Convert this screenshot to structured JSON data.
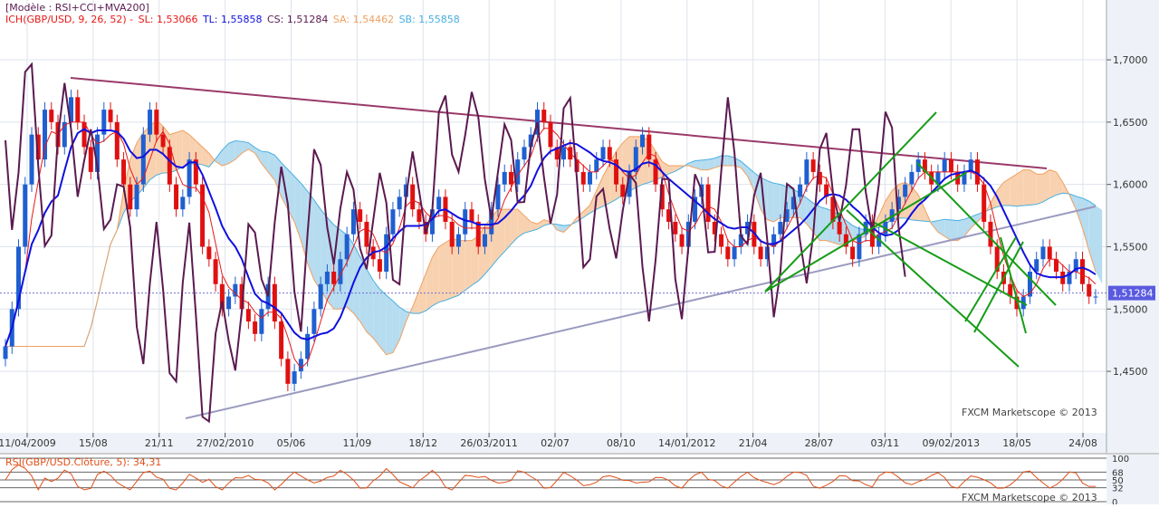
{
  "header": {
    "model_line": "[Modèle : RSI+CCI+MVA200]",
    "ich_label": "ICH(GBP/USD, 9, 26, 52) -",
    "sl": "SL: 1,53066",
    "tl": "TL: 1,55858",
    "cs": "CS: 1,51284",
    "sa": "SA: 1,54462",
    "sb": "SB: 1,55858"
  },
  "colors": {
    "background": "#ffffff",
    "grid": "#dde3ec",
    "axis_panel": "#eef2f8",
    "bull_candle": "#1f5fd0",
    "bear_candle": "#e01010",
    "tenkan": "#e81818",
    "kijun": "#1010e0",
    "chikou": "#5a1a50",
    "senkou_up_fill": "#b6dcf0",
    "senkou_down_fill": "#f8d2b0",
    "senkou_b": "#48b0e0",
    "senkou_a": "#f0a060",
    "trend_top": "#9a3a6a",
    "trend_bottom": "#9a9ac0",
    "channel": "#169c16",
    "rsi": "#e0501a",
    "price_marker_bg": "#5a5ae0"
  },
  "watermark": "FXCM Marketscope © 2013",
  "rsi_panel": {
    "label": "RSI(GBP/USD.Clôture, 5): 34,31",
    "watermark": "FXCM Marketscope © 2013",
    "ticks": [
      "100",
      "68",
      "50",
      "32",
      "0"
    ]
  },
  "chart_data": {
    "type": "candlestick",
    "symbol": "GBP/USD",
    "timeframe": "weekly",
    "ylim": [
      1.405,
      1.748
    ],
    "y_ticks": [
      1.45,
      1.5,
      1.55,
      1.6,
      1.65,
      1.7
    ],
    "y_tick_labels": [
      "1,4500",
      "1,5000",
      "1,5500",
      "1,6000",
      "1,6500",
      "1,7000"
    ],
    "x_tick_labels": [
      "11/04/2009",
      "15/08",
      "21/11",
      "27/02/2010",
      "05/06",
      "11/09",
      "18/12",
      "26/03/2011",
      "02/07",
      "08/10",
      "14/01/2012",
      "21/04",
      "28/07",
      "03/11",
      "09/02/2013",
      "18/05",
      "24/08"
    ],
    "last_price": 1.51284,
    "last_price_label": "1,51284",
    "grid": true,
    "closes": [
      1.47,
      1.5,
      1.55,
      1.6,
      1.64,
      1.62,
      1.66,
      1.65,
      1.63,
      1.65,
      1.67,
      1.65,
      1.63,
      1.61,
      1.64,
      1.66,
      1.65,
      1.62,
      1.6,
      1.58,
      1.6,
      1.64,
      1.66,
      1.64,
      1.63,
      1.6,
      1.58,
      1.59,
      1.62,
      1.6,
      1.55,
      1.54,
      1.52,
      1.5,
      1.51,
      1.52,
      1.5,
      1.49,
      1.48,
      1.5,
      1.52,
      1.49,
      1.46,
      1.44,
      1.45,
      1.46,
      1.48,
      1.5,
      1.52,
      1.53,
      1.52,
      1.54,
      1.56,
      1.58,
      1.57,
      1.55,
      1.54,
      1.53,
      1.56,
      1.58,
      1.59,
      1.6,
      1.58,
      1.57,
      1.56,
      1.58,
      1.59,
      1.57,
      1.55,
      1.56,
      1.58,
      1.57,
      1.55,
      1.56,
      1.58,
      1.6,
      1.61,
      1.6,
      1.62,
      1.63,
      1.64,
      1.66,
      1.65,
      1.63,
      1.62,
      1.63,
      1.62,
      1.61,
      1.6,
      1.61,
      1.62,
      1.63,
      1.62,
      1.6,
      1.59,
      1.61,
      1.63,
      1.64,
      1.62,
      1.6,
      1.58,
      1.57,
      1.56,
      1.55,
      1.57,
      1.59,
      1.6,
      1.57,
      1.56,
      1.55,
      1.54,
      1.55,
      1.56,
      1.57,
      1.55,
      1.54,
      1.55,
      1.56,
      1.57,
      1.58,
      1.59,
      1.6,
      1.62,
      1.61,
      1.6,
      1.59,
      1.57,
      1.56,
      1.55,
      1.54,
      1.56,
      1.57,
      1.55,
      1.56,
      1.57,
      1.58,
      1.59,
      1.6,
      1.61,
      1.62,
      1.61,
      1.6,
      1.61,
      1.62,
      1.61,
      1.6,
      1.61,
      1.62,
      1.6,
      1.57,
      1.55,
      1.53,
      1.52,
      1.51,
      1.5,
      1.51,
      1.53,
      1.54,
      1.55,
      1.54,
      1.53,
      1.52,
      1.53,
      1.54,
      1.52,
      1.51,
      1.51
    ]
  }
}
